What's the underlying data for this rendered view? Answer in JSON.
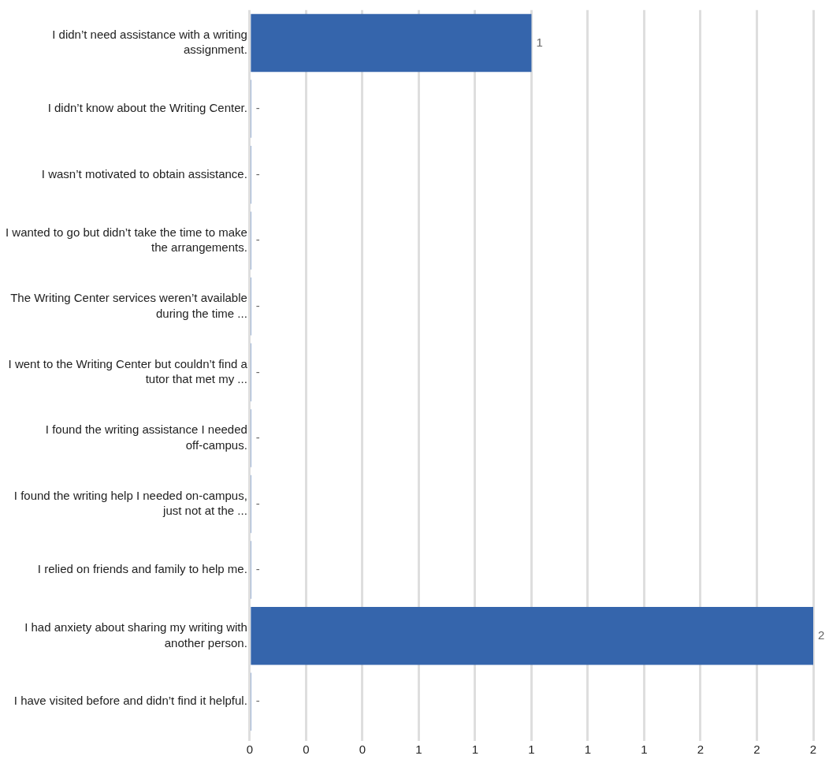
{
  "chart_data": {
    "type": "bar",
    "orientation": "horizontal",
    "categories": [
      "I didn’t need assistance with a writing assignment.",
      "I didn’t know about the Writing Center.",
      "I wasn’t motivated to obtain assistance.",
      "I wanted to go but didn’t take the time to make the arrangements.",
      "The Writing Center services weren’t available during the time ...",
      "I went to the Writing Center but couldn’t find a tutor that met my ...",
      "I found the writing assistance I needed off-campus.",
      "I found the writing help I needed on-campus, just not at the ...",
      "I relied on friends and family to help me.",
      "I had anxiety about sharing my writing with another person.",
      "I have visited before and didn’t find it helpful."
    ],
    "values": [
      1,
      0,
      0,
      0,
      0,
      0,
      0,
      0,
      0,
      2,
      0
    ],
    "value_labels": [
      "1",
      "-",
      "-",
      "-",
      "-",
      "-",
      "-",
      "-",
      "-",
      "2",
      "-"
    ],
    "color": "#3565ac",
    "xlim": [
      0,
      2
    ],
    "xticks": [
      {
        "value": 0,
        "label": "0"
      },
      {
        "value": 0.2,
        "label": "0"
      },
      {
        "value": 0.4,
        "label": "0"
      },
      {
        "value": 0.6,
        "label": "1"
      },
      {
        "value": 0.8,
        "label": "1"
      },
      {
        "value": 1,
        "label": "1"
      },
      {
        "value": 1.2,
        "label": "1"
      },
      {
        "value": 1.4,
        "label": "1"
      },
      {
        "value": 1.6,
        "label": "2"
      },
      {
        "value": 1.8,
        "label": "2"
      },
      {
        "value": 2,
        "label": "2"
      }
    ],
    "grid": "x"
  }
}
